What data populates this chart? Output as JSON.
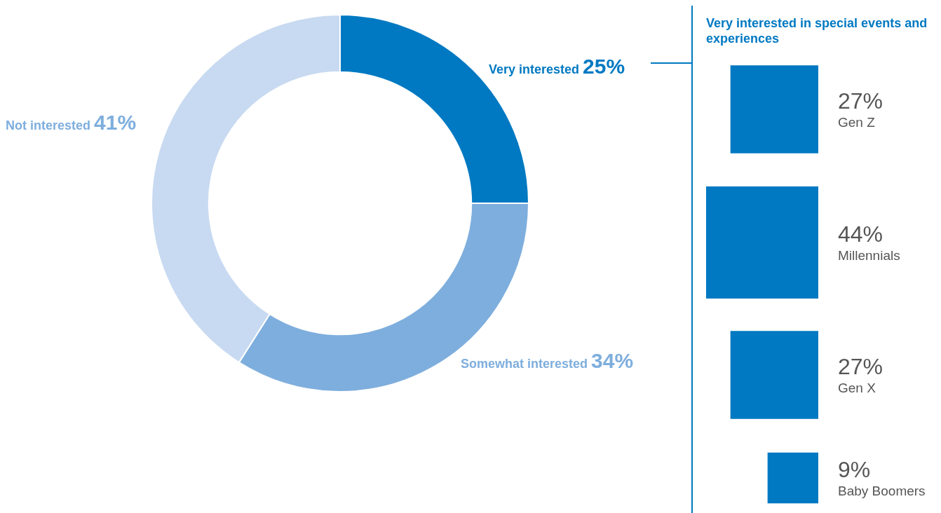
{
  "chart_data": [
    {
      "type": "donut",
      "categories": [
        "Very interested",
        "Somewhat interested",
        "Not interested"
      ],
      "values": [
        25,
        34,
        41
      ],
      "value_labels": [
        "25%",
        "34%",
        "41%"
      ],
      "colors": [
        "#0079c2",
        "#7eaedd",
        "#c8daf1"
      ],
      "legend": false
    },
    {
      "type": "other",
      "title": "Very interested in special events and experiences",
      "categories": [
        "Gen Z",
        "Millennials",
        "Gen X",
        "Baby Boomers"
      ],
      "values": [
        27,
        44,
        27,
        9
      ],
      "value_labels": [
        "27%",
        "44%",
        "27%",
        "9%"
      ],
      "color": "#0079c2",
      "legend": false
    }
  ]
}
